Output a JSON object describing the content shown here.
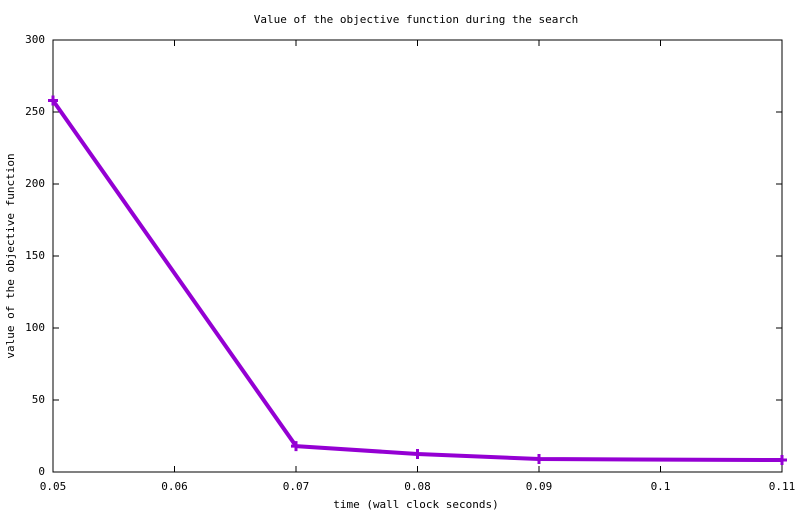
{
  "chart_data": {
    "type": "line",
    "title": "Value of the objective function during the search",
    "x_label": "time (wall clock seconds)",
    "y_label": "value of the objective function",
    "x": [
      0.05,
      0.07,
      0.08,
      0.09,
      0.11
    ],
    "series": [
      {
        "name": null,
        "color": "#9400d3",
        "values": [
          258,
          18,
          12.5,
          9,
          8.3
        ]
      }
    ],
    "xlim": [
      0.05,
      0.11
    ],
    "xticks": [
      0.05,
      0.06,
      0.07,
      0.08,
      0.09,
      0.1,
      0.11
    ],
    "ylim": [
      0,
      300
    ],
    "yticks": [
      0,
      50,
      100,
      150,
      200,
      250,
      300
    ],
    "grid": false,
    "markers": true
  }
}
